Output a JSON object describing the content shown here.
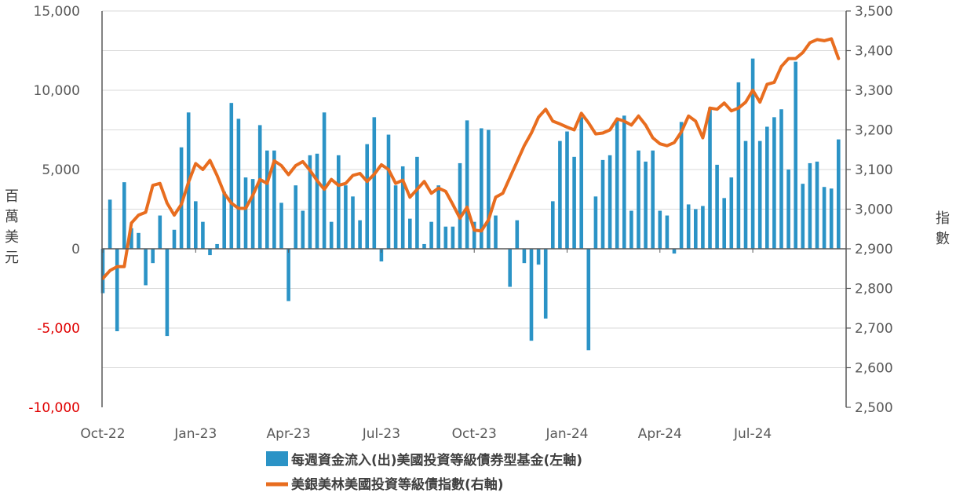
{
  "chart_data": {
    "type": "bar+line",
    "left_axis": {
      "title_chars": [
        "百",
        "萬",
        "美",
        "元"
      ],
      "ylim": [
        -10000,
        15000
      ],
      "ticks": [
        -10000,
        -5000,
        0,
        5000,
        10000,
        15000
      ],
      "tick_labels": [
        "-10,000",
        "-5,000",
        "0",
        "5,000",
        "10,000",
        "15,000"
      ],
      "negative_label_color": "#e00000",
      "positive_label_color": "#595959"
    },
    "right_axis": {
      "title_chars": [
        "指",
        "數"
      ],
      "ylim": [
        2500,
        3500
      ],
      "ticks": [
        2500,
        2600,
        2700,
        2800,
        2900,
        3000,
        3100,
        3200,
        3300,
        3400,
        3500
      ],
      "tick_labels": [
        "2,500",
        "2,600",
        "2,700",
        "2,800",
        "2,900",
        "3,000",
        "3,100",
        "3,200",
        "3,300",
        "3,400",
        "3,500"
      ]
    },
    "x_axis": {
      "tick_labels": [
        "Oct-22",
        "Jan-23",
        "Apr-23",
        "Jul-23",
        "Oct-23",
        "Jan-24",
        "Apr-24",
        "Jul-24"
      ],
      "tick_week_index": [
        0,
        13,
        26,
        39,
        52,
        65,
        78,
        91
      ]
    },
    "series": [
      {
        "name": "每週資金流入(出)美國投資等級債券型基金(左軸)",
        "type": "bar",
        "axis": "left",
        "color": "#2b93c6",
        "values": [
          -2800,
          3100,
          -5200,
          4200,
          1300,
          1000,
          -2300,
          -900,
          2100,
          -5500,
          1200,
          6400,
          8600,
          3000,
          1700,
          -400,
          300,
          3600,
          9200,
          8200,
          4500,
          4400,
          7800,
          6200,
          6200,
          2900,
          -3300,
          4000,
          2400,
          5900,
          6000,
          8600,
          1700,
          5900,
          4000,
          3300,
          1800,
          6600,
          8300,
          -800,
          7200,
          4000,
          5200,
          1900,
          5800,
          300,
          1700,
          4000,
          1400,
          1400,
          5400,
          8100,
          1700,
          7600,
          7500,
          2100,
          0,
          -2400,
          1800,
          -900,
          -5800,
          -1000,
          -4400,
          3000,
          6800,
          7400,
          5800,
          8300,
          -6400,
          3300,
          5600,
          5900,
          8100,
          8400,
          2400,
          6200,
          5500,
          6200,
          2400,
          2100,
          -300,
          8000,
          2800,
          2500,
          2700,
          8900,
          5300,
          3200,
          4500,
          10500,
          6800,
          12000,
          6800,
          7700,
          8300,
          8800,
          5000,
          11800,
          4100,
          5400,
          5500,
          3900,
          3800,
          6900
        ]
      },
      {
        "name": "美銀美林美國投資等級債指數(右軸)",
        "type": "line",
        "axis": "right",
        "color": "#e86d1f",
        "values": [
          2825,
          2845,
          2855,
          2855,
          2965,
          2985,
          2992,
          3060,
          3065,
          3015,
          2985,
          3012,
          3068,
          3115,
          3100,
          3123,
          3085,
          3040,
          3015,
          3002,
          3002,
          3035,
          3075,
          3065,
          3122,
          3110,
          3087,
          3110,
          3120,
          3098,
          3072,
          3050,
          3075,
          3060,
          3065,
          3085,
          3090,
          3070,
          3088,
          3112,
          3100,
          3065,
          3073,
          3030,
          3050,
          3070,
          3040,
          3053,
          3045,
          3012,
          2977,
          3005,
          2947,
          2945,
          2973,
          3030,
          3040,
          3080,
          3120,
          3160,
          3192,
          3232,
          3252,
          3222,
          3215,
          3207,
          3200,
          3242,
          3218,
          3190,
          3192,
          3200,
          3228,
          3222,
          3212,
          3235,
          3212,
          3180,
          3165,
          3160,
          3168,
          3195,
          3235,
          3222,
          3180,
          3255,
          3252,
          3268,
          3248,
          3255,
          3270,
          3300,
          3270,
          3315,
          3320,
          3360,
          3380,
          3380,
          3395,
          3420,
          3428,
          3425,
          3430,
          3380
        ]
      }
    ],
    "legend": {
      "placement": "bottom-center",
      "entries": [
        "每週資金流入(出)美國投資等級債券型基金(左軸)",
        "美銀美林美國投資等級債指數(右軸)"
      ]
    },
    "grid": "horizontal"
  }
}
